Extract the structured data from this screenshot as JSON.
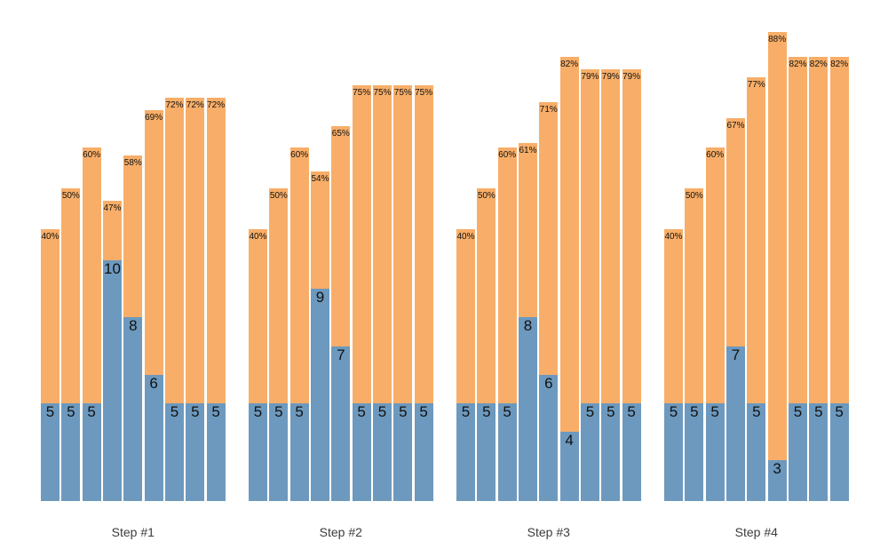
{
  "chart_data": {
    "type": "bar",
    "variant": "grouped-stacked-columns",
    "title": "",
    "background": "#ffffff",
    "legend": null,
    "series": [
      {
        "name": "blue-bottom-segment",
        "color": "#6D99BE"
      },
      {
        "name": "orange-top-segment",
        "color": "#F8AE68"
      }
    ],
    "label_color": "#111111",
    "group_label_color": "#3c3c3c",
    "groups": [
      {
        "label": "Step #1",
        "bars": [
          {
            "value": 5,
            "value_label": "5",
            "pct": 40,
            "pct_label": "40%"
          },
          {
            "value": 5,
            "value_label": "5",
            "pct": 50,
            "pct_label": "50%"
          },
          {
            "value": 5,
            "value_label": "5",
            "pct": 60,
            "pct_label": "60%"
          },
          {
            "value": 10,
            "value_label": "10",
            "pct": 47,
            "pct_label": "47%"
          },
          {
            "value": 8,
            "value_label": "8",
            "pct": 58,
            "pct_label": "58%"
          },
          {
            "value": 6,
            "value_label": "6",
            "pct": 69,
            "pct_label": "69%"
          },
          {
            "value": 5,
            "value_label": "5",
            "pct": 72,
            "pct_label": "72%"
          },
          {
            "value": 5,
            "value_label": "5",
            "pct": 72,
            "pct_label": "72%"
          },
          {
            "value": 5,
            "value_label": "5",
            "pct": 72,
            "pct_label": "72%"
          }
        ]
      },
      {
        "label": "Step #2",
        "bars": [
          {
            "value": 5,
            "value_label": "5",
            "pct": 40,
            "pct_label": "40%"
          },
          {
            "value": 5,
            "value_label": "5",
            "pct": 50,
            "pct_label": "50%"
          },
          {
            "value": 5,
            "value_label": "5",
            "pct": 60,
            "pct_label": "60%"
          },
          {
            "value": 9,
            "value_label": "9",
            "pct": 54,
            "pct_label": "54%"
          },
          {
            "value": 7,
            "value_label": "7",
            "pct": 65,
            "pct_label": "65%"
          },
          {
            "value": 5,
            "value_label": "5",
            "pct": 75,
            "pct_label": "75%"
          },
          {
            "value": 5,
            "value_label": "5",
            "pct": 75,
            "pct_label": "75%"
          },
          {
            "value": 5,
            "value_label": "5",
            "pct": 75,
            "pct_label": "75%"
          },
          {
            "value": 5,
            "value_label": "5",
            "pct": 75,
            "pct_label": "75%"
          }
        ]
      },
      {
        "label": "Step #3",
        "bars": [
          {
            "value": 5,
            "value_label": "5",
            "pct": 40,
            "pct_label": "40%"
          },
          {
            "value": 5,
            "value_label": "5",
            "pct": 50,
            "pct_label": "50%"
          },
          {
            "value": 5,
            "value_label": "5",
            "pct": 60,
            "pct_label": "60%"
          },
          {
            "value": 8,
            "value_label": "8",
            "pct": 61,
            "pct_label": "61%"
          },
          {
            "value": 6,
            "value_label": "6",
            "pct": 71,
            "pct_label": "71%"
          },
          {
            "value": 4,
            "value_label": "4",
            "pct": 82,
            "pct_label": "82%"
          },
          {
            "value": 5,
            "value_label": "5",
            "pct": 79,
            "pct_label": "79%"
          },
          {
            "value": 5,
            "value_label": "5",
            "pct": 79,
            "pct_label": "79%"
          },
          {
            "value": 5,
            "value_label": "5",
            "pct": 79,
            "pct_label": "79%"
          }
        ]
      },
      {
        "label": "Step #4",
        "bars": [
          {
            "value": 5,
            "value_label": "5",
            "pct": 40,
            "pct_label": "40%"
          },
          {
            "value": 5,
            "value_label": "5",
            "pct": 50,
            "pct_label": "50%"
          },
          {
            "value": 5,
            "value_label": "5",
            "pct": 60,
            "pct_label": "60%"
          },
          {
            "value": 7,
            "value_label": "7",
            "pct": 67,
            "pct_label": "67%"
          },
          {
            "value": 5,
            "value_label": "5",
            "pct": 77,
            "pct_label": "77%"
          },
          {
            "value": 3,
            "value_label": "3",
            "pct": 88,
            "pct_label": "88%"
          },
          {
            "value": 5,
            "value_label": "5",
            "pct": 82,
            "pct_label": "82%"
          },
          {
            "value": 5,
            "value_label": "5",
            "pct": 82,
            "pct_label": "82%"
          },
          {
            "value": 5,
            "value_label": "5",
            "pct": 82,
            "pct_label": "82%"
          }
        ]
      }
    ]
  }
}
